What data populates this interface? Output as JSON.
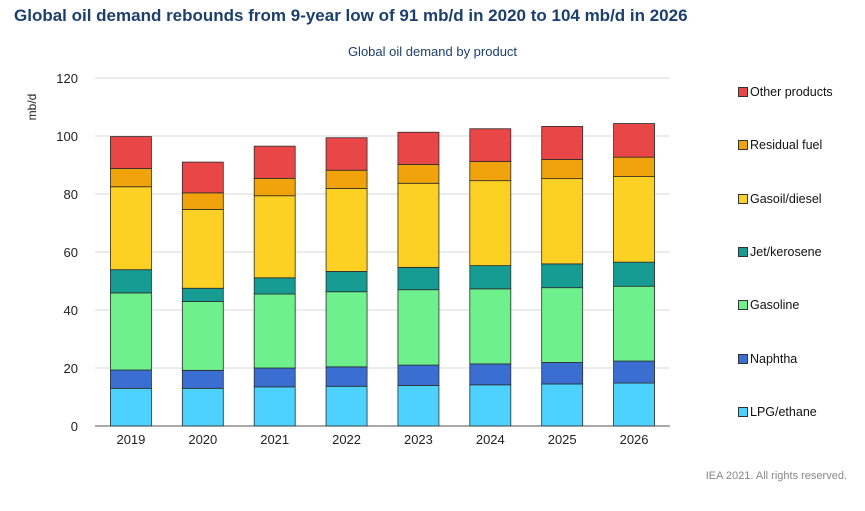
{
  "header": {
    "title": "Global oil demand rebounds from 9-year low of 91 mb/d in 2020 to 104 mb/d in 2026",
    "credit": "IEA 2021. All rights reserved."
  },
  "chart_data": {
    "type": "bar",
    "stacked": true,
    "title": "Global oil demand by product",
    "xlabel": "",
    "ylabel": "mb/d",
    "ylim": [
      0,
      120
    ],
    "yticks": [
      0,
      20,
      40,
      60,
      80,
      100,
      120
    ],
    "grid": true,
    "legend_position": "right",
    "categories": [
      "2019",
      "2020",
      "2021",
      "2022",
      "2023",
      "2024",
      "2025",
      "2026"
    ],
    "series": [
      {
        "name": "LPG/ethane",
        "color": "#4dd2ff",
        "values": [
          13,
          13,
          13.5,
          13.7,
          14,
          14.2,
          14.5,
          14.8
        ]
      },
      {
        "name": "Naphtha",
        "color": "#3a6fd1",
        "values": [
          6.3,
          6.2,
          6.5,
          6.7,
          7,
          7.2,
          7.4,
          7.6
        ]
      },
      {
        "name": "Gasoline",
        "color": "#6ef08c",
        "values": [
          26.6,
          23.7,
          25.5,
          25.9,
          26,
          25.9,
          25.8,
          25.8
        ]
      },
      {
        "name": "Jet/kerosene",
        "color": "#179c93",
        "values": [
          8,
          4.6,
          5.6,
          7,
          7.7,
          8,
          8.2,
          8.3
        ]
      },
      {
        "name": "Gasoil/diesel",
        "color": "#fcd123",
        "values": [
          28.6,
          27.2,
          28.3,
          28.6,
          29,
          29.3,
          29.4,
          29.5
        ]
      },
      {
        "name": "Residual fuel",
        "color": "#f0a30a",
        "values": [
          6.3,
          5.7,
          6,
          6.3,
          6.5,
          6.6,
          6.6,
          6.7
        ]
      },
      {
        "name": "Other products",
        "color": "#e94747",
        "values": [
          11,
          10.6,
          11.1,
          11.2,
          11.1,
          11.3,
          11.4,
          11.6
        ]
      }
    ]
  }
}
